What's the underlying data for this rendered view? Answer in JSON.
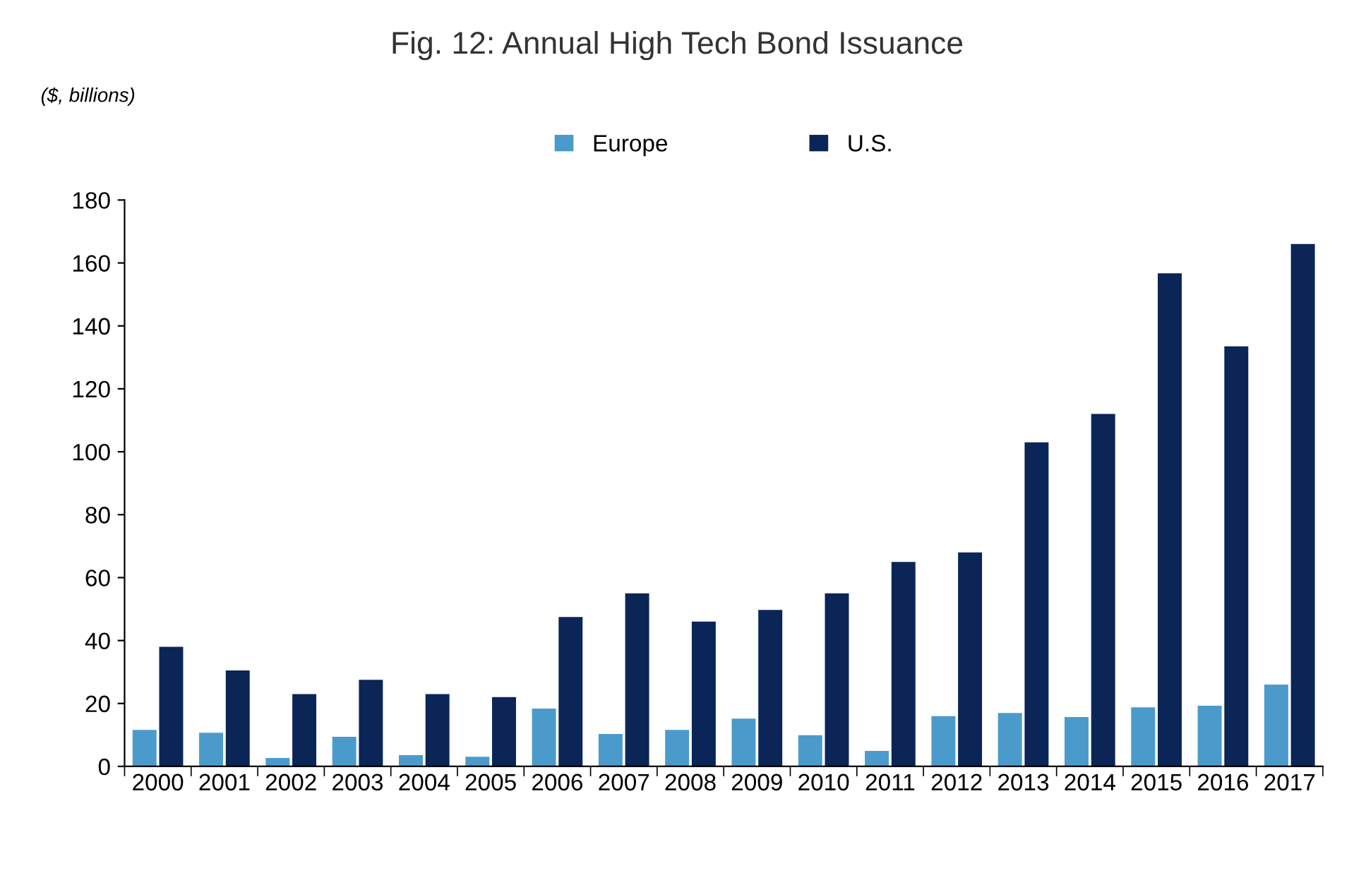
{
  "chart_data": {
    "type": "bar",
    "title": "Fig. 12: Annual High Tech Bond Issuance",
    "ylabel": "($, billions)",
    "categories": [
      "2000",
      "2001",
      "2002",
      "2003",
      "2004",
      "2005",
      "2006",
      "2007",
      "2008",
      "2009",
      "2010",
      "2011",
      "2012",
      "2013",
      "2014",
      "2015",
      "2016",
      "2017"
    ],
    "series": [
      {
        "name": "Europe",
        "color": "#4a9bcb",
        "values": [
          11.6,
          10.7,
          2.7,
          9.4,
          3.6,
          3.1,
          18.4,
          10.3,
          11.6,
          15.2,
          9.9,
          4.9,
          16,
          17,
          15.7,
          18.8,
          19.3,
          26
        ]
      },
      {
        "name": "U.S.",
        "color": "#0b2557",
        "values": [
          38,
          30.5,
          23,
          27.5,
          23,
          22,
          47.5,
          55,
          46,
          49.7,
          55,
          65,
          68,
          103,
          112,
          156.7,
          133.5,
          166
        ]
      }
    ],
    "ylim": [
      0,
      180
    ],
    "yticks": [
      0,
      20,
      40,
      60,
      80,
      100,
      120,
      140,
      160,
      180
    ],
    "grid": false,
    "legend": "top"
  }
}
